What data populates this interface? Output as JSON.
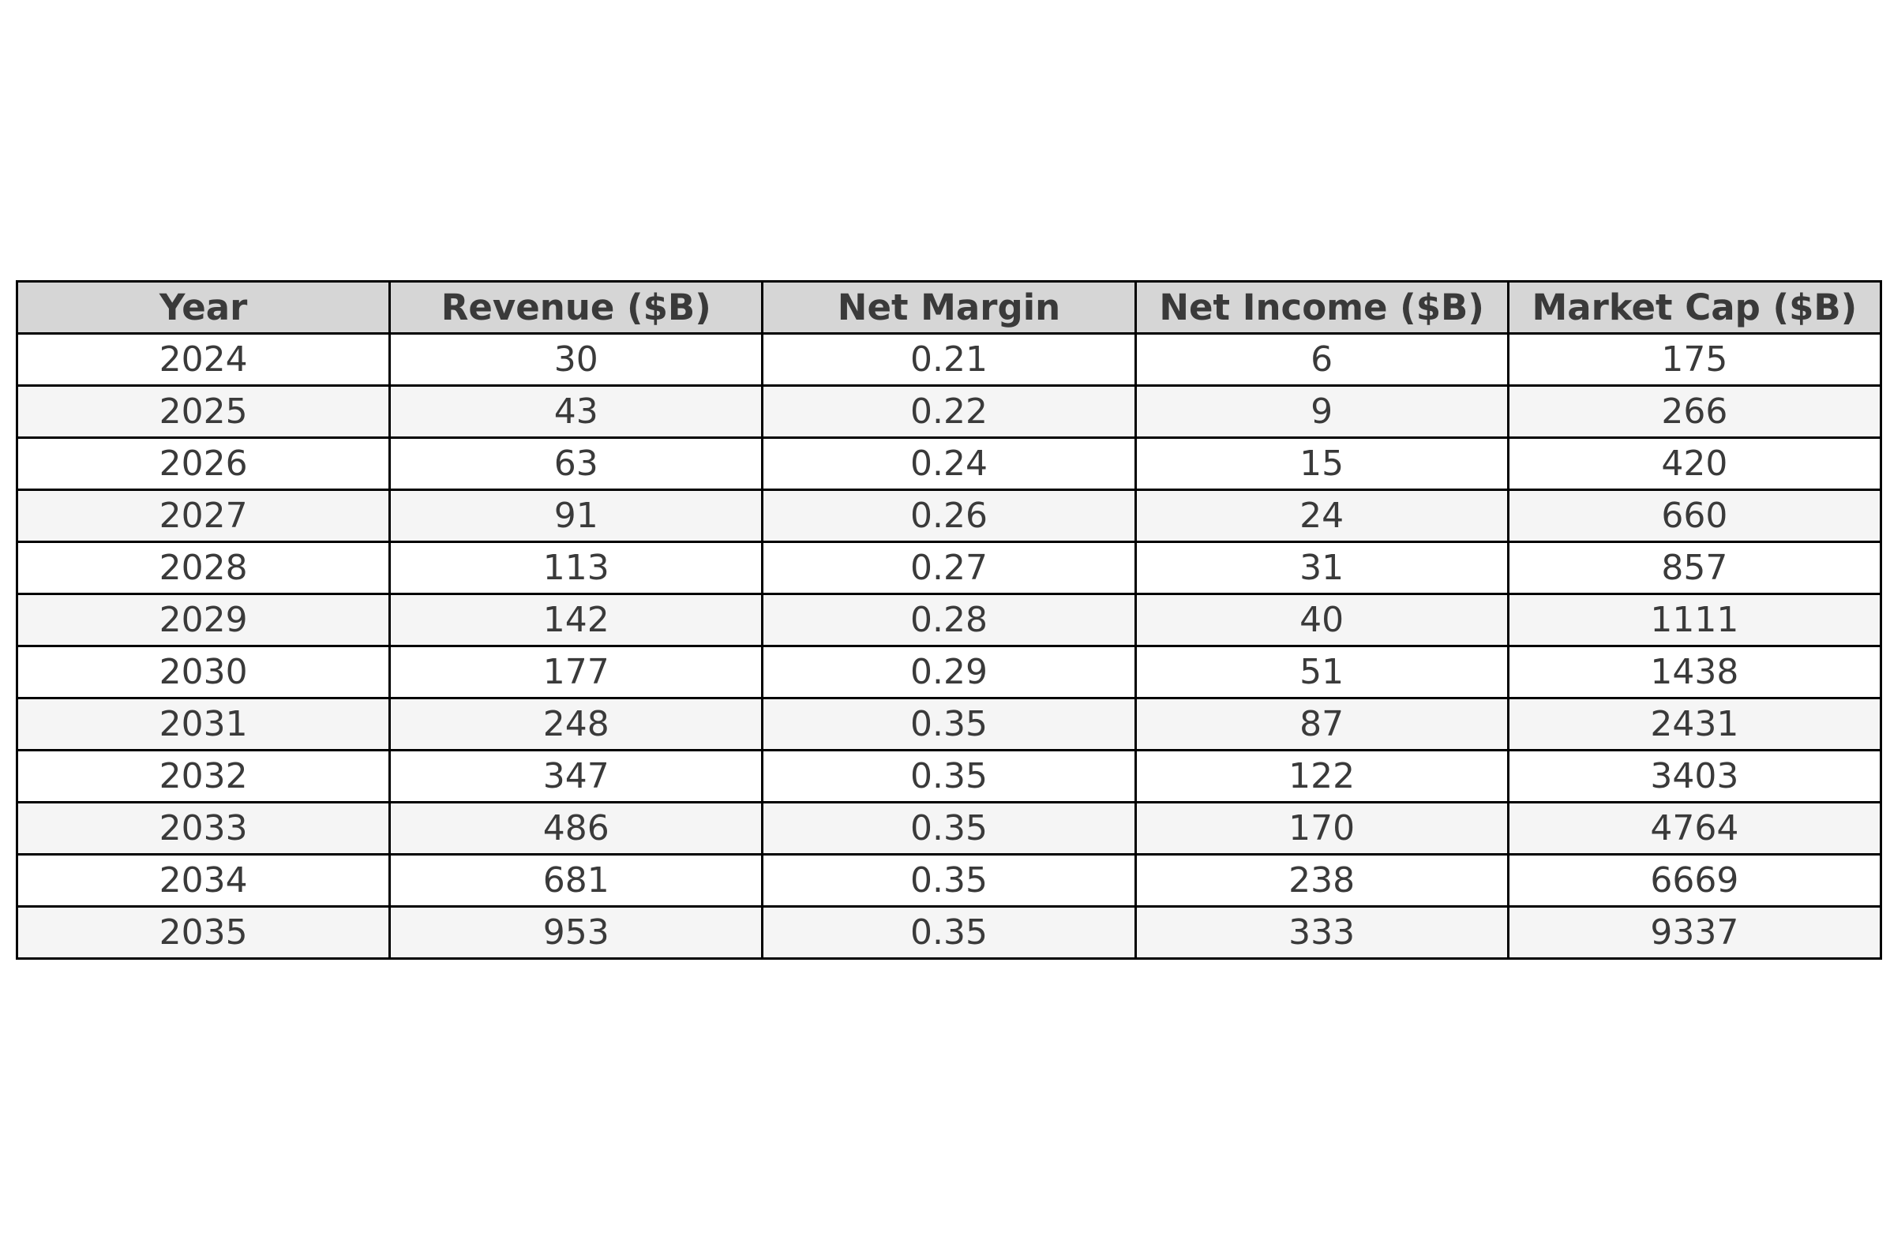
{
  "chart_data": {
    "type": "table",
    "columns": [
      "Year",
      "Revenue ($B)",
      "Net Margin",
      "Net Income ($B)",
      "Market Cap ($B)"
    ],
    "rows": [
      [
        "2024",
        "30",
        "0.21",
        "6",
        "175"
      ],
      [
        "2025",
        "43",
        "0.22",
        "9",
        "266"
      ],
      [
        "2026",
        "63",
        "0.24",
        "15",
        "420"
      ],
      [
        "2027",
        "91",
        "0.26",
        "24",
        "660"
      ],
      [
        "2028",
        "113",
        "0.27",
        "31",
        "857"
      ],
      [
        "2029",
        "142",
        "0.28",
        "40",
        "1111"
      ],
      [
        "2030",
        "177",
        "0.29",
        "51",
        "1438"
      ],
      [
        "2031",
        "248",
        "0.35",
        "87",
        "2431"
      ],
      [
        "2032",
        "347",
        "0.35",
        "122",
        "3403"
      ],
      [
        "2033",
        "486",
        "0.35",
        "170",
        "4764"
      ],
      [
        "2034",
        "681",
        "0.35",
        "238",
        "6669"
      ],
      [
        "2035",
        "953",
        "0.35",
        "333",
        "9337"
      ]
    ]
  },
  "colors": {
    "header_background": "#d6d6d6",
    "row_even_background": "#ffffff",
    "row_odd_background": "#f5f5f5",
    "border": "#000000",
    "text": "#3a3a3a",
    "page_background": "#ffffff"
  }
}
